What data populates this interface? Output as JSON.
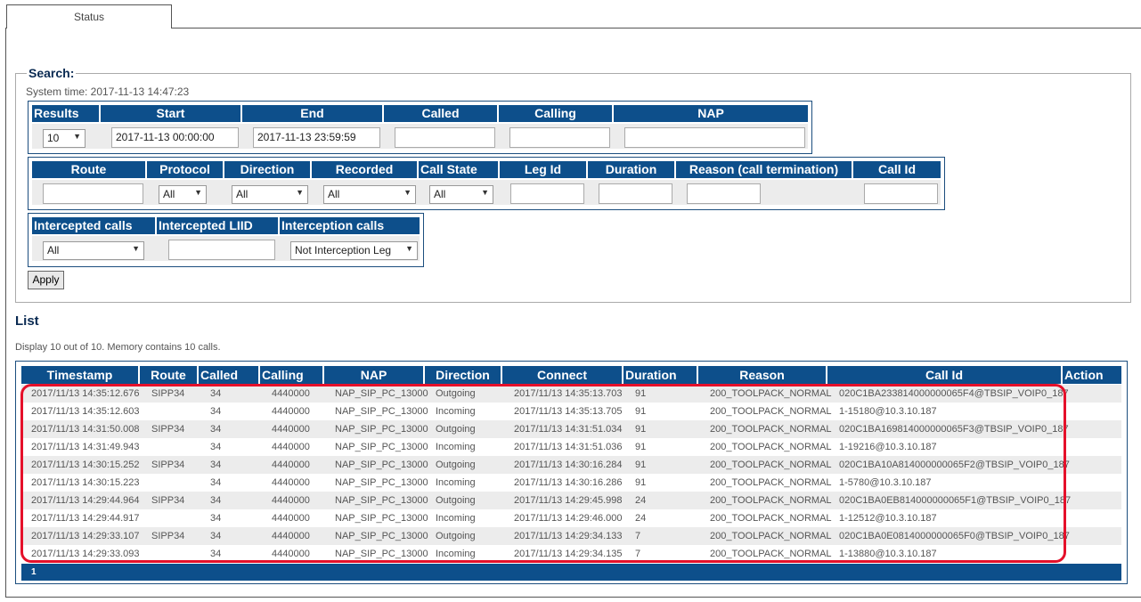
{
  "tab": {
    "status_label": "Status"
  },
  "search": {
    "legend": "Search:",
    "system_time": "System time: 2017-11-13 14:47:23",
    "group1": {
      "headers": {
        "results": "Results",
        "start": "Start",
        "end": "End",
        "called": "Called",
        "calling": "Calling",
        "nap": "NAP"
      },
      "values": {
        "results": "10",
        "start": "2017-11-13 00:00:00",
        "end": "2017-11-13 23:59:59",
        "called": "",
        "calling": "",
        "nap": ""
      }
    },
    "group2": {
      "headers": {
        "route": "Route",
        "protocol": "Protocol",
        "direction": "Direction",
        "recorded": "Recorded",
        "call_state": "Call State",
        "leg_id": "Leg Id",
        "duration": "Duration",
        "reason": "Reason (call termination)",
        "call_id": "Call Id"
      },
      "values": {
        "route": "",
        "protocol": "All",
        "direction": "All",
        "recorded": "All",
        "call_state": "All",
        "leg_id": "",
        "duration": "",
        "reason": "",
        "call_id": ""
      }
    },
    "group3": {
      "headers": {
        "intercepted_calls": "Intercepted calls",
        "intercepted_liid": "Intercepted LIID",
        "interception_calls": "Interception calls"
      },
      "values": {
        "intercepted_calls": "All",
        "intercepted_liid": "",
        "interception_calls": "Not Interception Leg"
      }
    },
    "apply_label": "Apply"
  },
  "list": {
    "title": "List",
    "display_text": "Display 10 out of 10. Memory contains 10 calls.",
    "columns": [
      "Timestamp",
      "Route",
      "Called",
      "Calling",
      "NAP",
      "Direction",
      "Connect",
      "Duration",
      "Reason",
      "Call Id",
      "Action"
    ],
    "rows": [
      [
        "2017/11/13 14:35:12.676",
        "SIPP34",
        "34",
        "4440000",
        "NAP_SIP_PC_13000",
        "Outgoing",
        "2017/11/13 14:35:13.703",
        "91",
        "200_TOOLPACK_NORMAL",
        "020C1BA233814000000065F4@TBSIP_VOIP0_187",
        ""
      ],
      [
        "2017/11/13 14:35:12.603",
        "",
        "34",
        "4440000",
        "NAP_SIP_PC_13000",
        "Incoming",
        "2017/11/13 14:35:13.705",
        "91",
        "200_TOOLPACK_NORMAL",
        "1-15180@10.3.10.187",
        ""
      ],
      [
        "2017/11/13 14:31:50.008",
        "SIPP34",
        "34",
        "4440000",
        "NAP_SIP_PC_13000",
        "Outgoing",
        "2017/11/13 14:31:51.034",
        "91",
        "200_TOOLPACK_NORMAL",
        "020C1BA169814000000065F3@TBSIP_VOIP0_187",
        ""
      ],
      [
        "2017/11/13 14:31:49.943",
        "",
        "34",
        "4440000",
        "NAP_SIP_PC_13000",
        "Incoming",
        "2017/11/13 14:31:51.036",
        "91",
        "200_TOOLPACK_NORMAL",
        "1-19216@10.3.10.187",
        ""
      ],
      [
        "2017/11/13 14:30:15.252",
        "SIPP34",
        "34",
        "4440000",
        "NAP_SIP_PC_13000",
        "Outgoing",
        "2017/11/13 14:30:16.284",
        "91",
        "200_TOOLPACK_NORMAL",
        "020C1BA10A814000000065F2@TBSIP_VOIP0_187",
        ""
      ],
      [
        "2017/11/13 14:30:15.223",
        "",
        "34",
        "4440000",
        "NAP_SIP_PC_13000",
        "Incoming",
        "2017/11/13 14:30:16.286",
        "91",
        "200_TOOLPACK_NORMAL",
        "1-5780@10.3.10.187",
        ""
      ],
      [
        "2017/11/13 14:29:44.964",
        "SIPP34",
        "34",
        "4440000",
        "NAP_SIP_PC_13000",
        "Outgoing",
        "2017/11/13 14:29:45.998",
        "24",
        "200_TOOLPACK_NORMAL",
        "020C1BA0EB814000000065F1@TBSIP_VOIP0_187",
        ""
      ],
      [
        "2017/11/13 14:29:44.917",
        "",
        "34",
        "4440000",
        "NAP_SIP_PC_13000",
        "Incoming",
        "2017/11/13 14:29:46.000",
        "24",
        "200_TOOLPACK_NORMAL",
        "1-12512@10.3.10.187",
        ""
      ],
      [
        "2017/11/13 14:29:33.107",
        "SIPP34",
        "34",
        "4440000",
        "NAP_SIP_PC_13000",
        "Outgoing",
        "2017/11/13 14:29:34.133",
        "7",
        "200_TOOLPACK_NORMAL",
        "020C1BA0E0814000000065F0@TBSIP_VOIP0_187",
        ""
      ],
      [
        "2017/11/13 14:29:33.093",
        "",
        "34",
        "4440000",
        "NAP_SIP_PC_13000",
        "Incoming",
        "2017/11/13 14:29:34.135",
        "7",
        "200_TOOLPACK_NORMAL",
        "1-13880@10.3.10.187",
        ""
      ]
    ],
    "pager": "1"
  },
  "colors": {
    "header_bg": "#0d4f8b",
    "row_alt": "#ececec",
    "highlight": "#e5102a"
  }
}
